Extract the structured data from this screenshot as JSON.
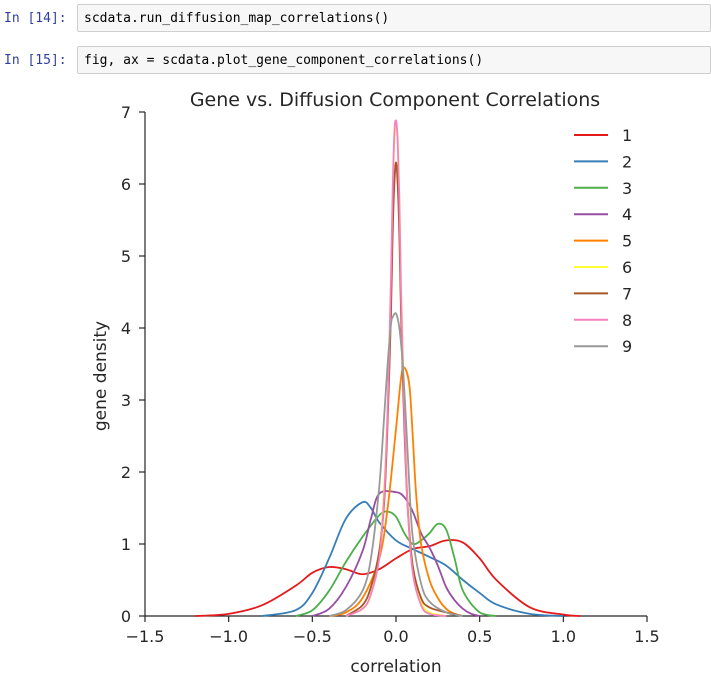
{
  "cells": [
    {
      "prompt": "In [14]:",
      "code": "scdata.run_diffusion_map_correlations()"
    },
    {
      "prompt": "In [15]:",
      "code": "fig, ax = scdata.plot_gene_component_correlations()"
    }
  ],
  "chart_data": {
    "type": "line",
    "title": "Gene vs. Diffusion Component Correlations",
    "xlabel": "correlation",
    "ylabel": "gene density",
    "xlim": [
      -1.5,
      1.5
    ],
    "ylim": [
      0,
      7
    ],
    "xticks": [
      -1.5,
      -1.0,
      -0.5,
      0.0,
      0.5,
      1.0,
      1.5
    ],
    "xtick_labels": [
      "−1.5",
      "−1.0",
      "−0.5",
      "0.0",
      "0.5",
      "1.0",
      "1.5"
    ],
    "yticks": [
      0,
      1,
      2,
      3,
      4,
      5,
      6,
      7
    ],
    "ytick_labels": [
      "0",
      "1",
      "2",
      "3",
      "4",
      "5",
      "6",
      "7"
    ],
    "grid": false,
    "legend_position": "top-right",
    "series": [
      {
        "name": "1",
        "color": "#e41a1c",
        "x": [
          -1.2,
          -1.0,
          -0.8,
          -0.6,
          -0.5,
          -0.4,
          -0.3,
          -0.2,
          -0.1,
          0.0,
          0.1,
          0.2,
          0.3,
          0.4,
          0.5,
          0.6,
          0.8,
          1.0,
          1.1
        ],
        "y": [
          0,
          0.03,
          0.15,
          0.42,
          0.6,
          0.68,
          0.65,
          0.58,
          0.65,
          0.8,
          0.93,
          0.97,
          1.05,
          1.02,
          0.8,
          0.5,
          0.12,
          0.02,
          0
        ]
      },
      {
        "name": "2",
        "color": "#377eb8",
        "x": [
          -0.8,
          -0.6,
          -0.5,
          -0.4,
          -0.3,
          -0.2,
          -0.15,
          -0.1,
          0.0,
          0.1,
          0.2,
          0.3,
          0.4,
          0.5,
          0.6,
          0.8,
          1.0
        ],
        "y": [
          0,
          0.08,
          0.32,
          0.8,
          1.35,
          1.58,
          1.5,
          1.3,
          1.05,
          0.93,
          0.82,
          0.7,
          0.5,
          0.32,
          0.16,
          0.03,
          0
        ]
      },
      {
        "name": "3",
        "color": "#4daf4a",
        "x": [
          -0.6,
          -0.5,
          -0.4,
          -0.3,
          -0.2,
          -0.1,
          -0.05,
          0.0,
          0.05,
          0.1,
          0.15,
          0.2,
          0.25,
          0.3,
          0.35,
          0.4,
          0.5,
          0.6
        ],
        "y": [
          0,
          0.08,
          0.35,
          0.75,
          1.1,
          1.4,
          1.45,
          1.38,
          1.15,
          1.0,
          1.05,
          1.15,
          1.28,
          1.2,
          0.8,
          0.35,
          0.05,
          0
        ]
      },
      {
        "name": "4",
        "color": "#984ea3",
        "x": [
          -0.5,
          -0.4,
          -0.3,
          -0.2,
          -0.15,
          -0.1,
          0.0,
          0.05,
          0.1,
          0.15,
          0.2,
          0.25,
          0.3,
          0.35,
          0.4,
          0.45,
          0.5
        ],
        "y": [
          0,
          0.1,
          0.4,
          0.9,
          1.35,
          1.7,
          1.72,
          1.65,
          1.45,
          1.15,
          0.95,
          0.7,
          0.4,
          0.22,
          0.1,
          0.03,
          0
        ]
      },
      {
        "name": "5",
        "color": "#ff7f00",
        "x": [
          -0.4,
          -0.3,
          -0.2,
          -0.1,
          -0.05,
          0.0,
          0.03,
          0.05,
          0.08,
          0.1,
          0.12,
          0.15,
          0.2,
          0.25,
          0.3,
          0.35,
          0.4
        ],
        "y": [
          0,
          0.05,
          0.25,
          0.8,
          1.5,
          2.6,
          3.3,
          3.45,
          3.2,
          2.5,
          1.7,
          1.0,
          0.5,
          0.25,
          0.1,
          0.03,
          0
        ]
      },
      {
        "name": "6",
        "color": "#ffff33",
        "x": [
          -0.3,
          -0.2,
          -0.15,
          -0.1,
          -0.07,
          -0.05,
          -0.03,
          -0.02,
          -0.01,
          0.0,
          0.01,
          0.02,
          0.03,
          0.05,
          0.07,
          0.1,
          0.15,
          0.2,
          0.3
        ],
        "y": [
          0,
          0.1,
          0.3,
          0.9,
          1.8,
          2.9,
          4.6,
          5.8,
          6.6,
          6.8,
          6.6,
          5.8,
          4.6,
          2.9,
          1.6,
          0.7,
          0.2,
          0.05,
          0
        ]
      },
      {
        "name": "7",
        "color": "#a65628",
        "x": [
          -0.3,
          -0.2,
          -0.15,
          -0.1,
          -0.07,
          -0.05,
          -0.03,
          -0.02,
          -0.01,
          0.0,
          0.01,
          0.02,
          0.03,
          0.05,
          0.07,
          0.1,
          0.15,
          0.2,
          0.3,
          0.4
        ],
        "y": [
          0,
          0.15,
          0.4,
          0.9,
          1.6,
          2.7,
          4.2,
          5.3,
          6.0,
          6.3,
          6.0,
          5.3,
          4.2,
          2.6,
          1.5,
          0.7,
          0.25,
          0.12,
          0.05,
          0
        ]
      },
      {
        "name": "8",
        "color": "#f781bf",
        "x": [
          -0.3,
          -0.2,
          -0.15,
          -0.1,
          -0.07,
          -0.05,
          -0.03,
          -0.02,
          -0.01,
          0.0,
          0.01,
          0.02,
          0.03,
          0.05,
          0.07,
          0.1,
          0.15,
          0.2,
          0.3
        ],
        "y": [
          0,
          0.1,
          0.3,
          0.8,
          1.7,
          2.9,
          4.7,
          5.9,
          6.7,
          6.88,
          6.6,
          5.8,
          4.5,
          2.8,
          1.5,
          0.6,
          0.15,
          0.03,
          0
        ]
      },
      {
        "name": "9",
        "color": "#999999",
        "x": [
          -0.4,
          -0.3,
          -0.2,
          -0.15,
          -0.1,
          -0.07,
          -0.05,
          -0.03,
          -0.02,
          0.0,
          0.02,
          0.04,
          0.06,
          0.08,
          0.1,
          0.15,
          0.2,
          0.3,
          0.4
        ],
        "y": [
          0,
          0.08,
          0.35,
          0.8,
          1.8,
          2.8,
          3.5,
          4.05,
          4.15,
          4.2,
          4.0,
          3.5,
          2.7,
          1.8,
          1.1,
          0.45,
          0.2,
          0.05,
          0
        ]
      }
    ]
  }
}
